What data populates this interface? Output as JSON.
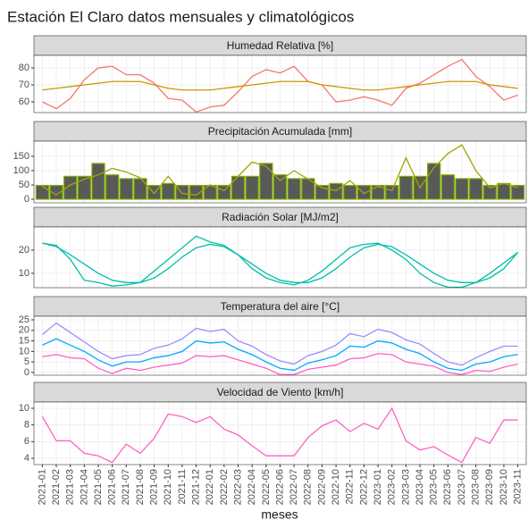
{
  "chart_data": {
    "type": "facet",
    "title": "Estación El Claro datos mensuales y climatológicos",
    "xlabel": "meses",
    "categories": [
      "2021-01",
      "2021-02",
      "2021-03",
      "2021-04",
      "2021-05",
      "2021-06",
      "2021-07",
      "2021-08",
      "2021-09",
      "2021-10",
      "2021-11",
      "2021-12",
      "2022-01",
      "2022-02",
      "2022-03",
      "2022-04",
      "2022-05",
      "2022-06",
      "2022-07",
      "2022-08",
      "2022-09",
      "2022-10",
      "2022-11",
      "2022-12",
      "2023-01",
      "2023-02",
      "2023-03",
      "2023-04",
      "2023-05",
      "2023-06",
      "2023-07",
      "2023-08",
      "2023-09",
      "2023-10",
      "2023-11"
    ],
    "grid": true,
    "panels": [
      {
        "type": "line",
        "title": "Humedad Relativa [%]",
        "ylim": [
          53.7,
          87.4
        ],
        "yticks": [
          60,
          70,
          80
        ],
        "series": [
          {
            "color": "#F8766D",
            "values": [
              60,
              56,
              62,
              73,
              80,
              81,
              76,
              76,
              71,
              62,
              61,
              54,
              57,
              58,
              66,
              75,
              79,
              77,
              81,
              72,
              70,
              60,
              61,
              63,
              61,
              58,
              68,
              71,
              76,
              81,
              85,
              75,
              69,
              61,
              64
            ]
          },
          {
            "color": "#CD9600",
            "values": [
              67,
              68,
              69,
              70,
              71,
              72,
              72,
              72,
              70,
              68,
              67,
              67,
              67,
              68,
              69,
              70,
              71,
              72,
              72,
              72,
              70,
              69,
              68,
              67,
              67,
              68,
              69,
              70,
              71,
              72,
              72,
              72,
              70,
              69,
              68
            ]
          }
        ]
      },
      {
        "type": "bar-line",
        "title": "Precipitación Acumulada [mm]",
        "ylim": [
          -12.5,
          203
        ],
        "yticks": [
          0,
          50,
          100,
          150
        ],
        "series": [
          {
            "type": "bar",
            "color": "#595959",
            "stroke": "#7CAE00",
            "values": [
              48,
              48,
              80,
              80,
              125,
              85,
              72,
              72,
              48,
              55,
              48,
              48,
              48,
              48,
              80,
              80,
              125,
              85,
              72,
              72,
              48,
              55,
              48,
              48,
              48,
              48,
              80,
              80,
              125,
              85,
              72,
              72,
              48,
              55,
              48
            ]
          },
          {
            "type": "line",
            "color": "#A3A500",
            "values": [
              45,
              15,
              50,
              70,
              85,
              108,
              95,
              75,
              20,
              80,
              20,
              15,
              50,
              30,
              80,
              130,
              115,
              65,
              100,
              70,
              40,
              30,
              65,
              20,
              45,
              30,
              145,
              40,
              110,
              160,
              190,
              100,
              40,
              55,
              40
            ]
          }
        ]
      },
      {
        "type": "line",
        "title": "Radiación Solar [MJ/m2]",
        "ylim": [
          3.8,
          30
        ],
        "yticks": [
          10,
          20
        ],
        "series": [
          {
            "color": "#00C19F",
            "values": [
              23,
              22,
              16,
              7,
              6,
              4.5,
              5,
              6,
              11,
              16,
              21,
              26,
              23.5,
              22,
              18,
              12,
              8,
              6,
              5,
              7,
              11,
              16,
              21,
              22.5,
              23,
              20,
              16,
              10,
              6,
              4,
              4,
              6,
              10,
              14.5,
              19
            ]
          },
          {
            "color": "#00BFB0",
            "values": [
              23,
              21.5,
              18,
              14,
              10,
              7,
              6,
              6,
              8,
              12,
              17,
              21,
              22.5,
              21.5,
              18,
              14,
              10,
              7,
              6,
              6,
              8,
              12,
              17,
              21,
              22.5,
              21.5,
              18,
              14,
              10,
              7,
              6,
              6,
              8,
              12,
              19
            ]
          }
        ]
      },
      {
        "type": "line",
        "title": "Temperatura del aire [°C]",
        "ylim": [
          -1.3,
          26.7
        ],
        "yticks": [
          0,
          5,
          10,
          15,
          20,
          25
        ],
        "series": [
          {
            "color": "#9590FF",
            "values": [
              18,
              23.5,
              19,
              14.5,
              10,
              6.5,
              8,
              8.5,
              11.5,
              13,
              16,
              21,
              19.5,
              20.5,
              15,
              12.5,
              8.5,
              5.5,
              4,
              8,
              10,
              13,
              18.5,
              17,
              20.5,
              19,
              15.5,
              13.5,
              9,
              5,
              3.5,
              7,
              10,
              12.5,
              12.5
            ]
          },
          {
            "color": "#00A9FF",
            "values": [
              13,
              16,
              13,
              10,
              6,
              3,
              5,
              5,
              7,
              8,
              10,
              15,
              14,
              14.5,
              11,
              8.5,
              5,
              2,
              1,
              4.5,
              6,
              8,
              12.5,
              12,
              15,
              14,
              11,
              9,
              5,
              2,
              1,
              4,
              5,
              7.5,
              8.5
            ]
          },
          {
            "color": "#FF61C3",
            "values": [
              7.5,
              8.5,
              7,
              6.5,
              2,
              -0.5,
              2,
              1,
              2.5,
              3.5,
              4.5,
              8,
              7.5,
              8,
              6,
              4,
              2,
              -1,
              -1,
              1.5,
              2.5,
              3.5,
              6.5,
              7,
              9,
              8.5,
              5,
              4,
              3,
              0,
              -1,
              1,
              0.5,
              2.5,
              4
            ]
          }
        ]
      },
      {
        "type": "line",
        "title": "Velocidad de Viento [km/h]",
        "ylim": [
          3.25,
          10.75
        ],
        "yticks": [
          4,
          6,
          8,
          10
        ],
        "series": [
          {
            "color": "#FF61C3",
            "values": [
              9,
              6.1,
              6.1,
              4.6,
              4.3,
              3.5,
              5.7,
              4.6,
              6.4,
              9.3,
              9,
              8.3,
              9,
              7.5,
              6.8,
              5.5,
              4.3,
              4.3,
              4.3,
              6.5,
              7.9,
              8.6,
              7.2,
              8.2,
              7.5,
              10,
              6.1,
              5,
              5.4,
              4.4,
              3.5,
              6.5,
              5.8,
              8.6,
              8.6
            ]
          }
        ]
      }
    ]
  }
}
